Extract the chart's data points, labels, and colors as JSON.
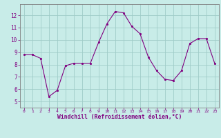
{
  "x": [
    0,
    1,
    2,
    3,
    4,
    5,
    6,
    7,
    8,
    9,
    10,
    11,
    12,
    13,
    14,
    15,
    16,
    17,
    18,
    19,
    20,
    21,
    22,
    23
  ],
  "y": [
    8.8,
    8.8,
    8.5,
    5.4,
    5.9,
    7.9,
    8.1,
    8.1,
    8.1,
    9.8,
    11.3,
    12.3,
    12.2,
    11.1,
    10.5,
    8.6,
    7.5,
    6.8,
    6.7,
    7.5,
    9.7,
    10.1,
    10.1,
    8.1
  ],
  "line_color": "#800080",
  "marker_color": "#800080",
  "bg_color": "#c8ece8",
  "grid_color": "#a0ccc8",
  "axis_label_color": "#800080",
  "tick_color": "#800080",
  "spine_color": "#808080",
  "ylabel_ticks": [
    5,
    6,
    7,
    8,
    9,
    10,
    11,
    12
  ],
  "xlabel": "Windchill (Refroidissement éolien,°C)",
  "ylim": [
    4.5,
    12.9
  ],
  "xlim": [
    -0.5,
    23.5
  ],
  "figwidth": 3.2,
  "figheight": 2.0,
  "dpi": 100
}
